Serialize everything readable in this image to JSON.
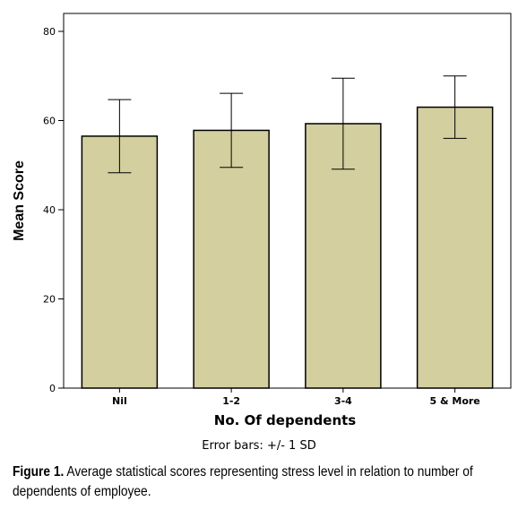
{
  "chart_data": {
    "type": "bar",
    "categories": [
      "Nil",
      "1-2",
      "3-4",
      "5 & More"
    ],
    "series": [
      {
        "values": [
          56.5,
          57.8,
          59.3,
          63.0
        ],
        "error_minus": [
          8.2,
          8.3,
          10.2,
          7.0
        ],
        "error_plus": [
          8.2,
          8.3,
          10.2,
          7.0
        ]
      }
    ],
    "xlabel": "No. Of dependents",
    "ylabel": "Mean Score",
    "ylim": [
      0,
      80
    ],
    "yticks": [
      0,
      20,
      40,
      60,
      80
    ],
    "grid": false,
    "bar_color": "#d3cf9e",
    "bar_edge_color": "#000000"
  },
  "footnote": "Error bars: +/- 1 SD",
  "caption": {
    "label": "Figure 1.",
    "text": "Average statistical scores representing stress level in relation to number of dependents of employee."
  }
}
